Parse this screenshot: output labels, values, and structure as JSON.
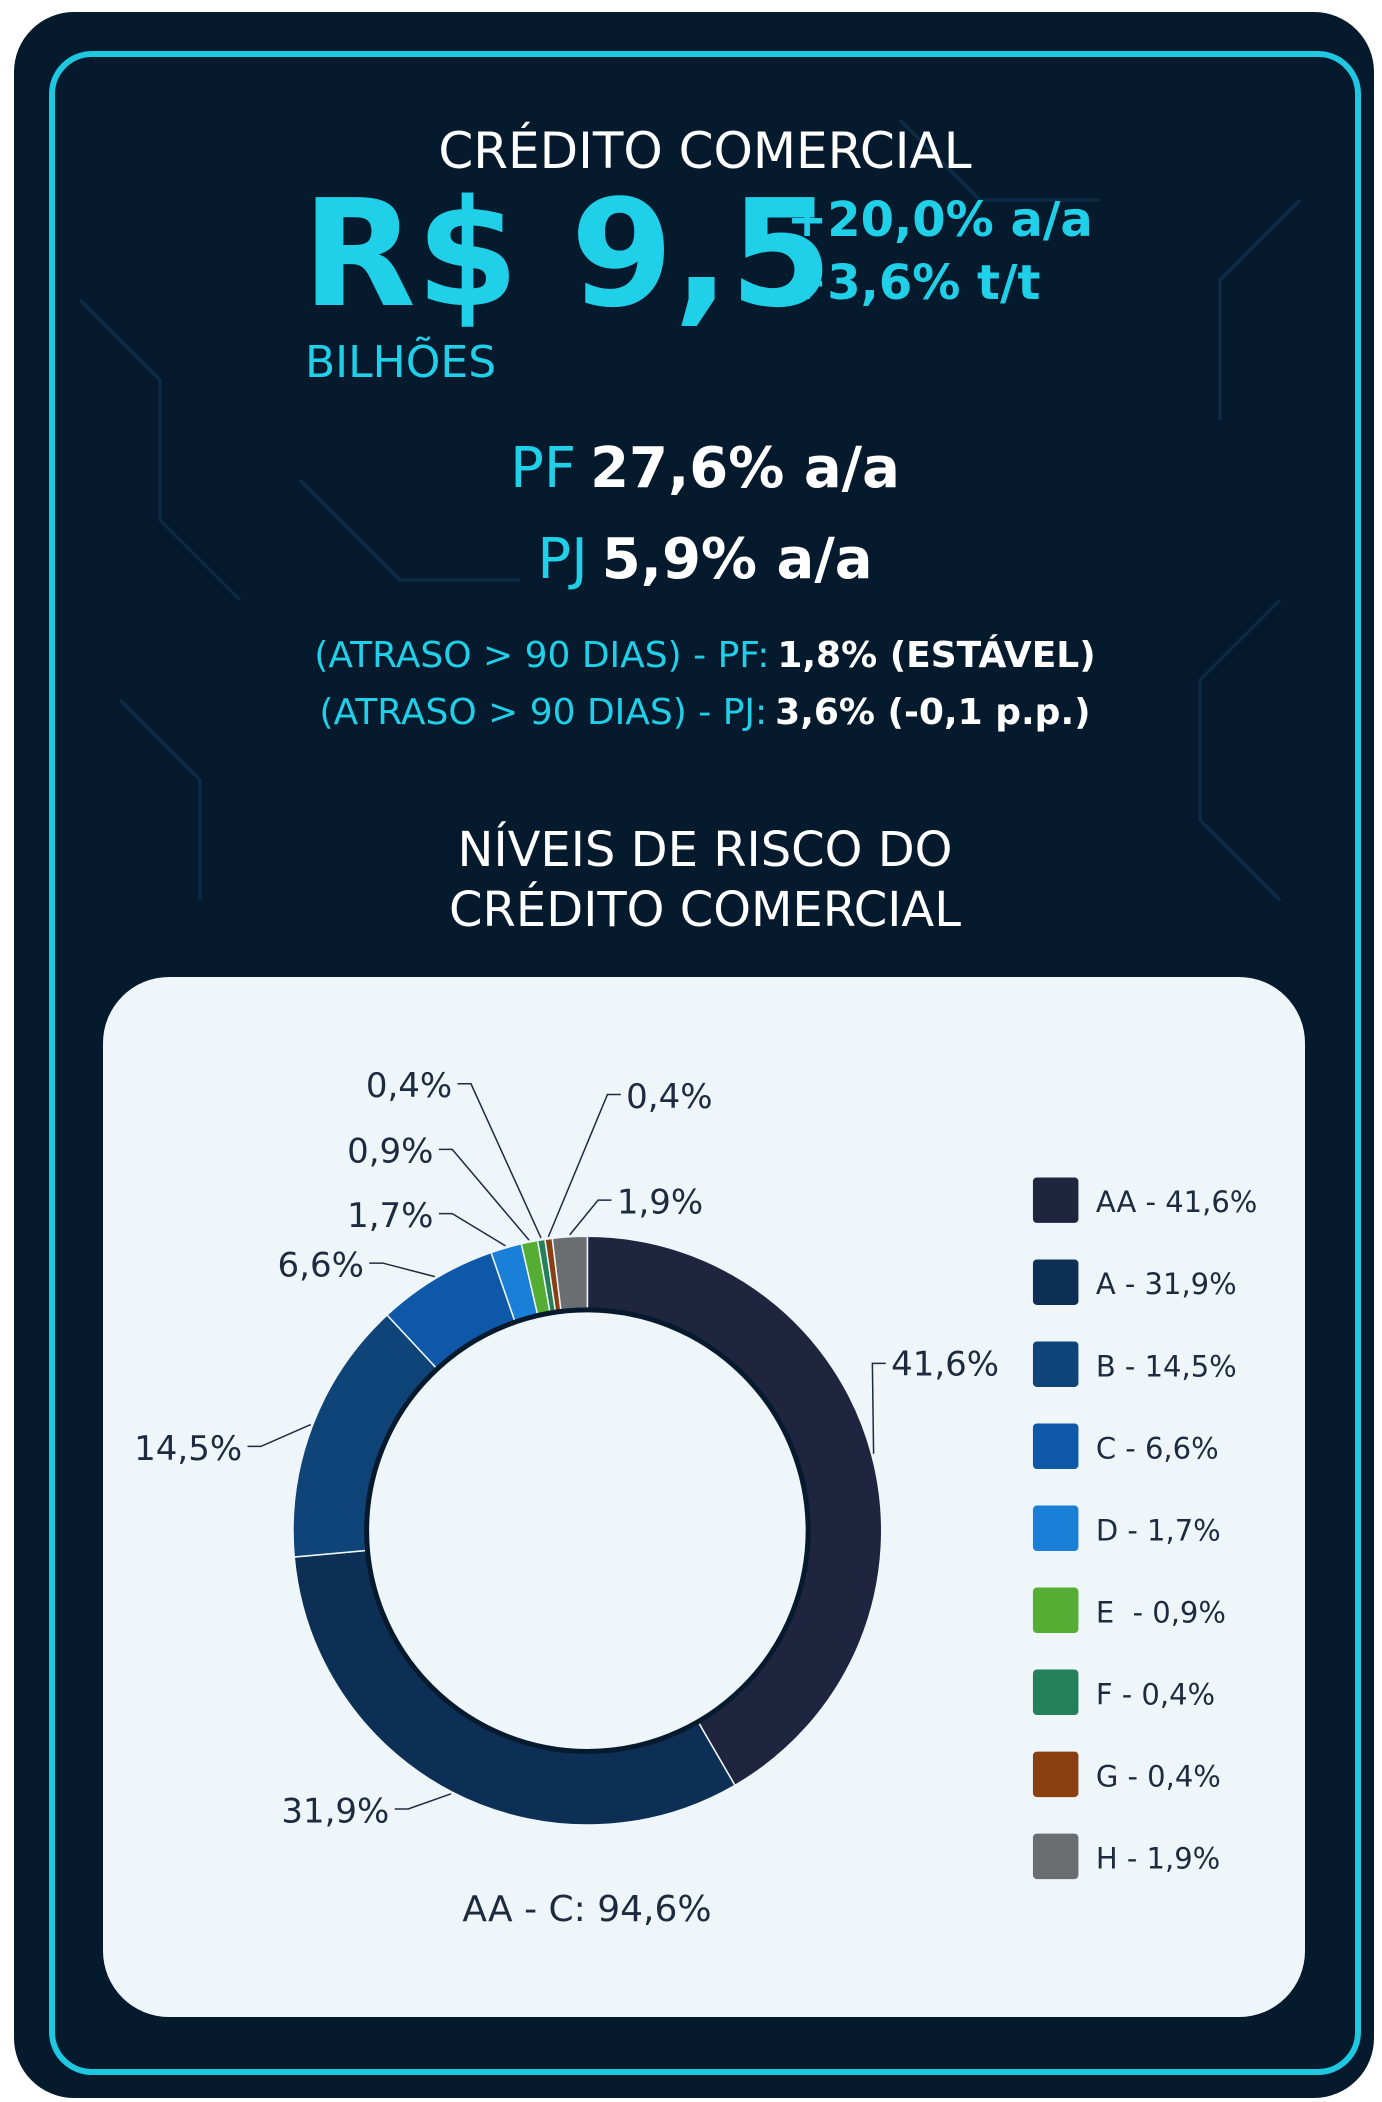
{
  "header": {
    "title": "CRÉDITO COMERCIAL",
    "amount": "R$ 9,5",
    "unit": "BILHÕES",
    "growth_yoy": "+20,0% a/a",
    "growth_qoq": "+3,6% t/t"
  },
  "segments": [
    {
      "label": "PF",
      "value": "27,6% a/a"
    },
    {
      "label": "PJ",
      "value": "5,9% a/a"
    }
  ],
  "delinquency": [
    {
      "label": "(ATRASO > 90 DIAS) - PF:",
      "value": "1,8% (ESTÁVEL)"
    },
    {
      "label": "(ATRASO > 90 DIAS) - PJ:",
      "value": "3,6%  (-0,1 p.p.)"
    }
  ],
  "chart_data": {
    "type": "pie",
    "donut": true,
    "title_lines": [
      "NÍVEIS DE RISCO DO",
      "CRÉDITO COMERCIAL"
    ],
    "categories": [
      "AA",
      "A",
      "B",
      "C",
      "D",
      "E",
      "F",
      "G",
      "H"
    ],
    "values": [
      41.6,
      31.9,
      14.5,
      6.6,
      1.7,
      0.9,
      0.4,
      0.4,
      1.9
    ],
    "value_labels": [
      "41,6%",
      "31,9%",
      "14,5%",
      "6,6%",
      "1,7%",
      "0,9%",
      "0,4%",
      "0,4%",
      "1,9%"
    ],
    "legend_labels": [
      "AA - 41,6%",
      "A - 31,9%",
      "B - 14,5%",
      "C - 6,6%",
      "D - 1,7%",
      "E  - 0,9%",
      "F - 0,4%",
      "G - 0,4%",
      "H - 1,9%"
    ],
    "colors": [
      "#20253f",
      "#0d2f55",
      "#0f4478",
      "#0f58a8",
      "#1a7fd6",
      "#56ad33",
      "#23805a",
      "#8a3f12",
      "#6b6e70"
    ],
    "legend": "right",
    "note": "AA - C: 94,6%"
  }
}
